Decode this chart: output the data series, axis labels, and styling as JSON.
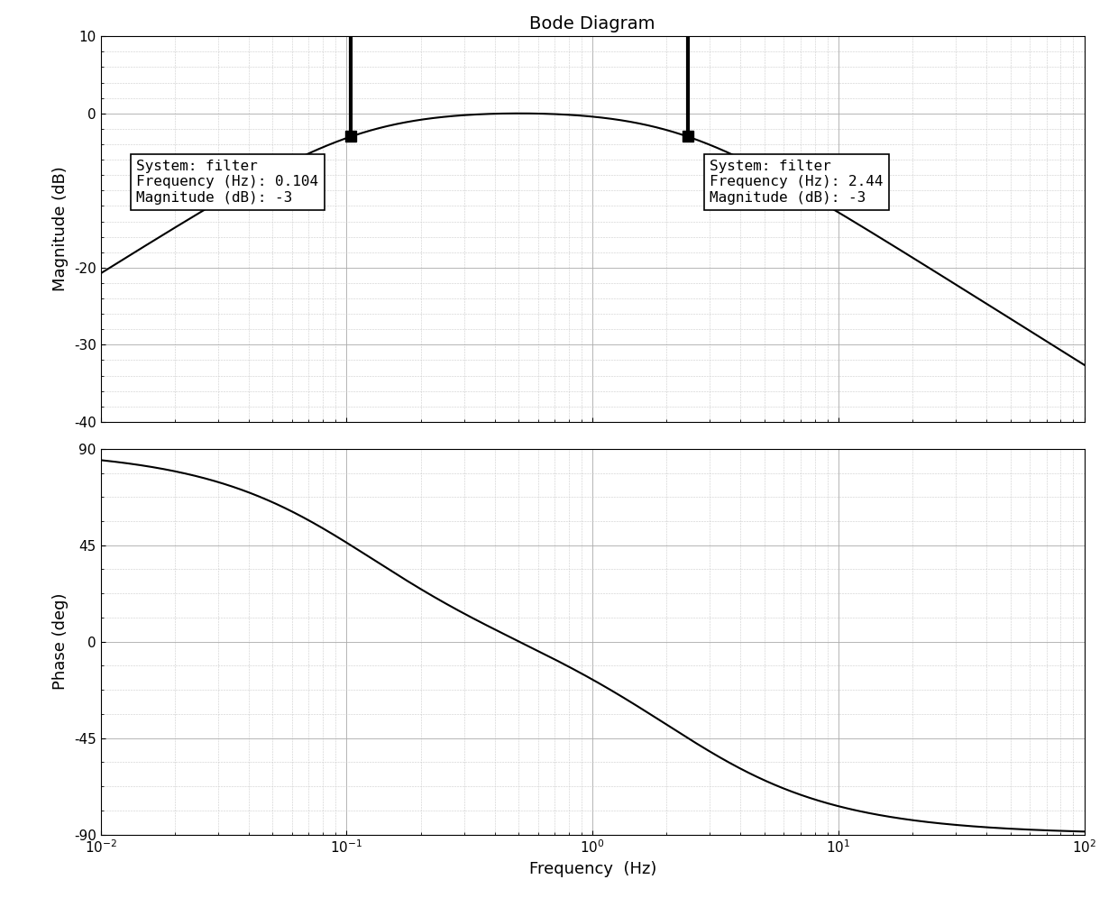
{
  "title": "Bode Diagram",
  "xlabel": "Frequency  (Hz)",
  "ylabel_mag": "Magnitude (dB)",
  "ylabel_phase": "Phase (deg)",
  "freq_range": [
    0.01,
    100
  ],
  "mag_ylim": [
    -40,
    10
  ],
  "phase_ylim": [
    -90,
    90
  ],
  "mag_yticks": [
    10,
    0,
    -20,
    -30,
    -40
  ],
  "phase_yticks": [
    90,
    45,
    0,
    -45,
    -90
  ],
  "filter_f1": 0.104,
  "filter_f2": 2.44,
  "marker_mag_db": -3,
  "annotation1_lines": [
    "System: filter",
    "Frequency (Hz): 0.104",
    "Magnitude (dB): -3"
  ],
  "annotation2_lines": [
    "System: filter",
    "Frequency (Hz): 2.44",
    "Magnitude (dB): -3"
  ],
  "line_color": "#000000",
  "bg_color": "#ffffff",
  "peak_gain_db": 2.0,
  "line_width": 1.5
}
